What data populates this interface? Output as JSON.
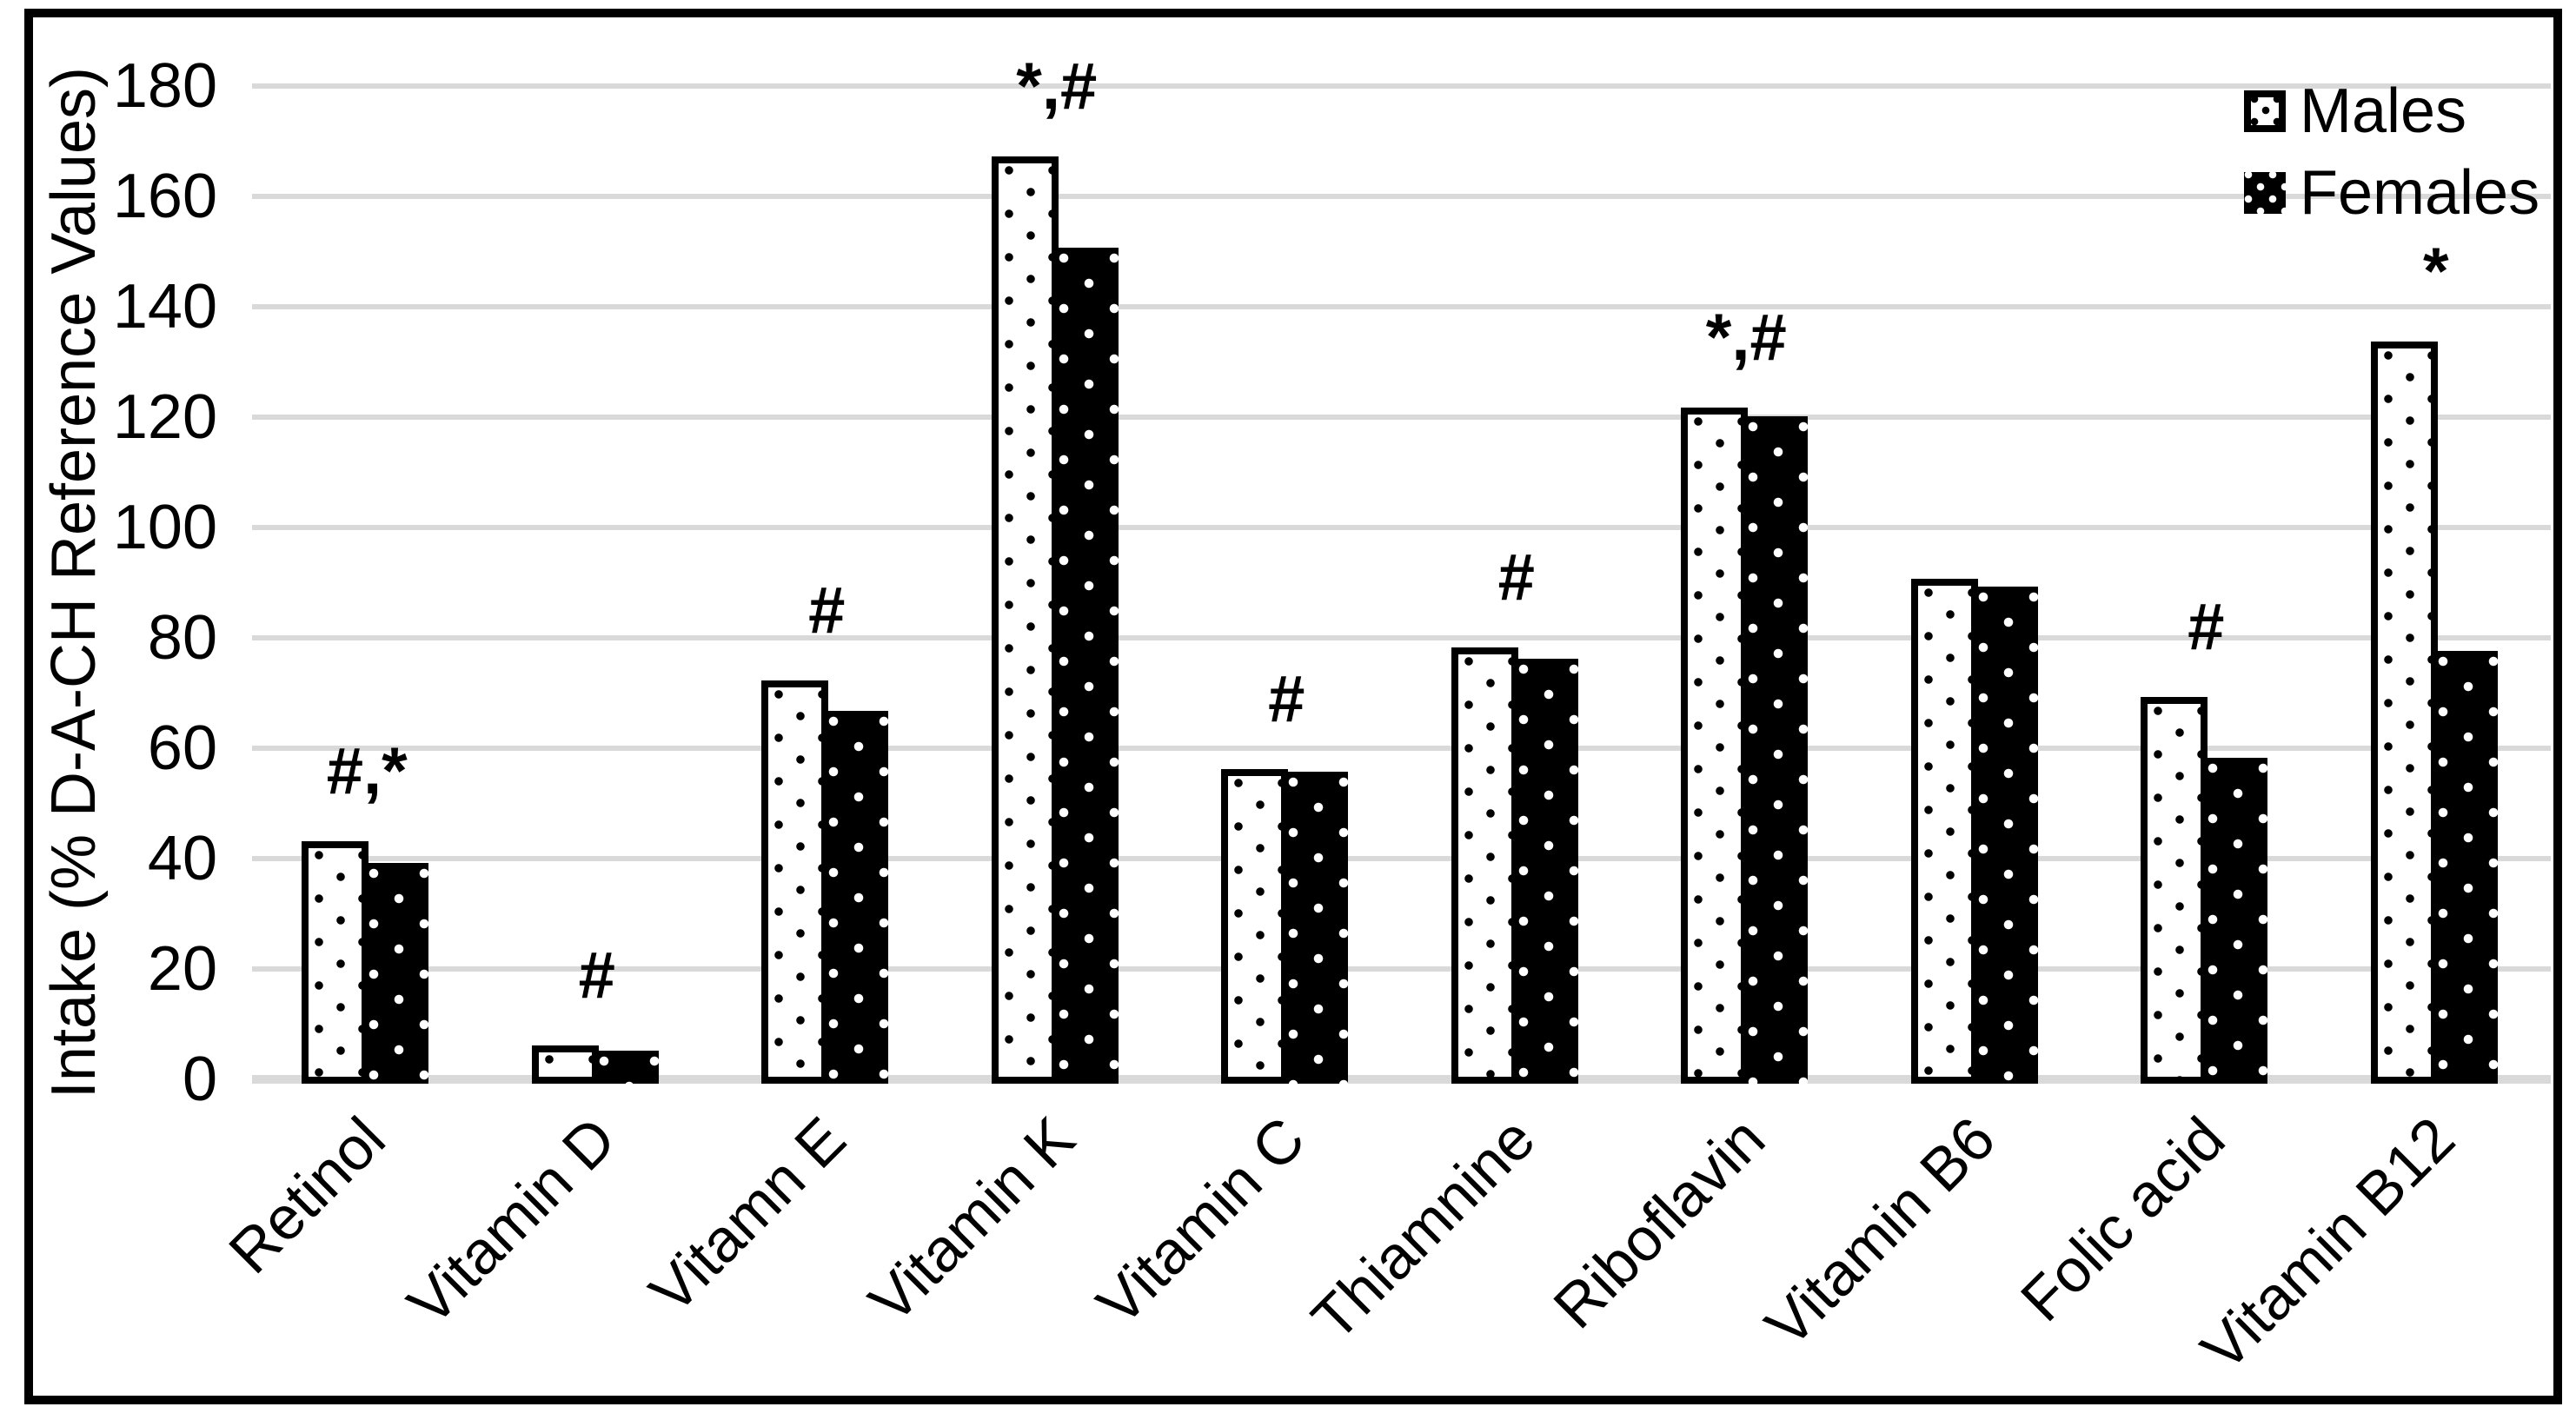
{
  "y_axis": {
    "title": "Intake (% D-A-CH Reference Values)",
    "min": 0,
    "max": 180,
    "step": 20,
    "tick_labels": [
      "0",
      "20",
      "40",
      "60",
      "80",
      "100",
      "120",
      "140",
      "160",
      "180"
    ]
  },
  "legend": {
    "position": "top-right",
    "items": [
      {
        "label": "Males",
        "pattern": "white-with-black-dots"
      },
      {
        "label": "Females",
        "pattern": "black-with-white-dots"
      }
    ]
  },
  "chart_data": {
    "type": "bar",
    "title": "",
    "xlabel": "",
    "ylabel": "Intake (% D-A-CH Reference Values)",
    "ylim": [
      0,
      180
    ],
    "grid": "horizontal-light-gray",
    "legend_position": "top-right",
    "categories": [
      "Retinol",
      "Vitamin D",
      "Vitamn E",
      "Vitamin K",
      "Vitamin C",
      "Thiamnine",
      "Riboflavin",
      "Vitamin B6",
      "Folic acid",
      "Vitamin B12"
    ],
    "series": [
      {
        "name": "Males",
        "values": [
          44,
          7,
          73,
          168,
          57,
          79,
          122.5,
          91.5,
          70,
          134.5
        ]
      },
      {
        "name": "Females",
        "values": [
          40,
          6,
          67.5,
          151.5,
          56.5,
          77,
          121,
          90,
          59,
          78.5
        ]
      }
    ],
    "annotations": [
      "#,*",
      "#",
      "#",
      "*,#",
      "#",
      "#",
      "*,#",
      "",
      "#",
      "*"
    ]
  },
  "colors": {
    "gridline": "#d9d9d9",
    "bar_outline": "#000000",
    "males_fill": "#ffffff",
    "females_fill": "#000000",
    "background": "#ffffff",
    "frame_border": "#000000"
  }
}
